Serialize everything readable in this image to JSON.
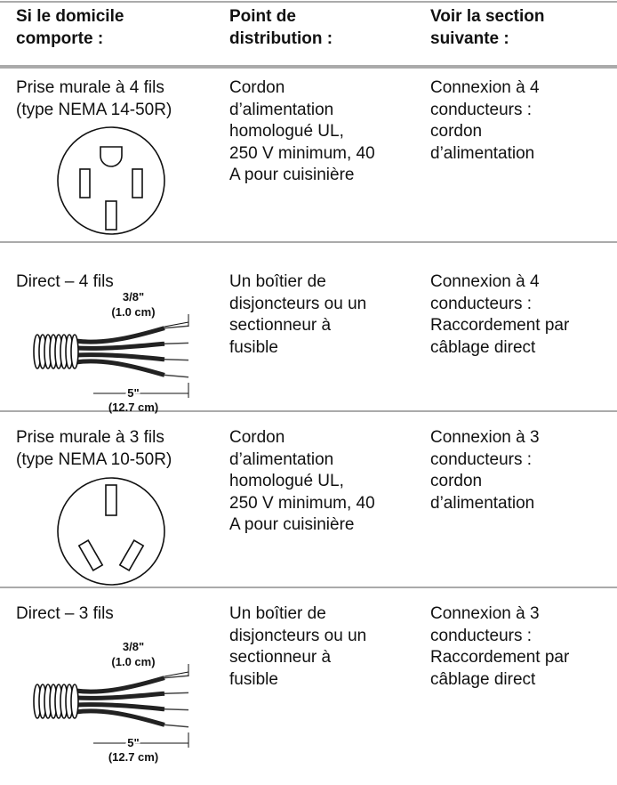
{
  "table": {
    "header": [
      [
        "Si le domicile",
        "comporte :"
      ],
      [
        "Point de",
        "distribution :"
      ],
      [
        "Voir la section",
        "suivante :"
      ]
    ],
    "rows": [
      {
        "cells": [
          [
            "Prise murale à 4 fils",
            "(type NEMA 14-50R)"
          ],
          [
            "Cordon",
            "d’alimentation",
            "homologué UL,",
            "250 V minimum, 40",
            "A pour cuisinière"
          ],
          [
            "Connexion à 4",
            "conducteurs :",
            "cordon",
            "d’alimentation"
          ]
        ]
      },
      {
        "cells": [
          [
            "Direct – 4 fils"
          ],
          [
            "Un boîtier de",
            "disjoncteurs ou un",
            "sectionneur à",
            "fusible"
          ],
          [
            "Connexion à 4",
            "conducteurs :",
            "Raccordement par",
            "câblage direct"
          ]
        ],
        "strip_labels": [
          "3/8\"",
          "(1.0 cm)",
          "5\"",
          "(12.7 cm)"
        ]
      },
      {
        "cells": [
          [
            "Prise murale à 3 fils",
            "(type NEMA 10-50R)"
          ],
          [
            "Cordon",
            "d’alimentation",
            "homologué UL,",
            "250 V minimum, 40",
            "A pour cuisinière"
          ],
          [
            "Connexion à 3",
            "conducteurs :",
            "cordon",
            "d’alimentation"
          ]
        ]
      },
      {
        "cells": [
          [
            "Direct – 3 fils"
          ],
          [
            "Un boîtier de",
            "disjoncteurs ou un",
            "sectionneur à",
            "fusible"
          ],
          [
            "Connexion à 3",
            "conducteurs :",
            "Raccordement par",
            "câblage direct"
          ]
        ],
        "strip_labels": [
          "3/8\"",
          "(1.0 cm)",
          "5\"",
          "(12.7 cm)"
        ]
      }
    ]
  }
}
